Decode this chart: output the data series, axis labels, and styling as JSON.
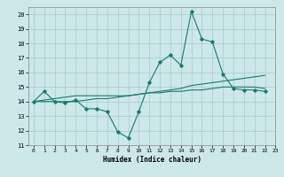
{
  "xlabel": "Humidex (Indice chaleur)",
  "ylabel": "",
  "xlim": [
    -0.5,
    23
  ],
  "ylim": [
    11,
    20.5
  ],
  "yticks": [
    11,
    12,
    13,
    14,
    15,
    16,
    17,
    18,
    19,
    20
  ],
  "xticks": [
    0,
    1,
    2,
    3,
    4,
    5,
    6,
    7,
    8,
    9,
    10,
    11,
    12,
    13,
    14,
    15,
    16,
    17,
    18,
    19,
    20,
    21,
    22,
    23
  ],
  "background_color": "#cce8e8",
  "line_color": "#1a7a6e",
  "grid_color": "#aacccc",
  "series": [
    [
      14.0,
      14.7,
      14.0,
      13.9,
      14.1,
      13.5,
      13.5,
      13.3,
      11.9,
      11.5,
      13.3,
      15.3,
      16.7,
      17.2,
      16.5,
      20.2,
      18.3,
      18.1,
      15.9,
      14.9,
      14.8,
      14.8,
      14.7
    ],
    [
      14.0,
      14.0,
      14.0,
      14.0,
      14.0,
      14.1,
      14.2,
      14.2,
      14.3,
      14.4,
      14.5,
      14.6,
      14.7,
      14.8,
      14.9,
      15.1,
      15.2,
      15.3,
      15.4,
      15.5,
      15.6,
      15.7,
      15.8
    ],
    [
      14.0,
      14.1,
      14.2,
      14.3,
      14.4,
      14.4,
      14.4,
      14.4,
      14.4,
      14.4,
      14.5,
      14.6,
      14.6,
      14.7,
      14.7,
      14.8,
      14.8,
      14.9,
      15.0,
      15.0,
      15.0,
      15.0,
      14.9
    ]
  ],
  "series_x": [
    0,
    1,
    2,
    3,
    4,
    5,
    6,
    7,
    8,
    9,
    10,
    11,
    12,
    13,
    14,
    15,
    16,
    17,
    18,
    19,
    20,
    21,
    22
  ]
}
